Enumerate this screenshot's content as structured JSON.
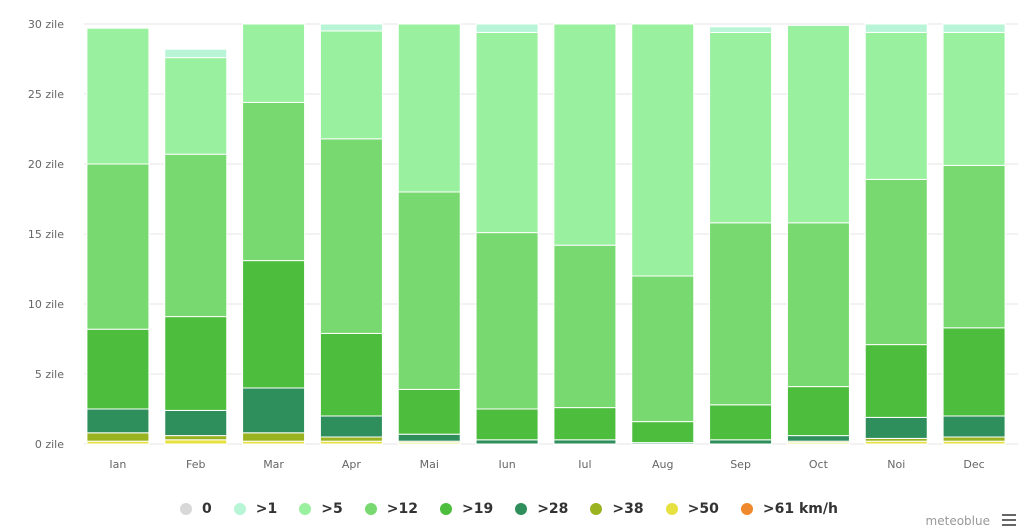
{
  "chart_data": {
    "type": "bar",
    "stacked": true,
    "categories": [
      "Ian",
      "Feb",
      "Mar",
      "Apr",
      "Mai",
      "Iun",
      "Iul",
      "Aug",
      "Sep",
      "Oct",
      "Noi",
      "Dec"
    ],
    "y_ticks": [
      "0 zile",
      "5 zile",
      "10 zile",
      "15 zile",
      "20 zile",
      "25 zile",
      "30 zile"
    ],
    "ylim": [
      0,
      30
    ],
    "grid": true,
    "legend_position": "bottom",
    "series": [
      {
        "name": "0",
        "color": "#d8d8d8",
        "values": [
          0,
          0,
          0,
          0,
          0,
          0,
          0,
          0,
          0,
          0,
          0,
          0
        ]
      },
      {
        "name": ">1",
        "color": "#b7f5d6",
        "values": [
          0,
          0.6,
          0,
          0.5,
          0,
          0.6,
          0,
          0,
          0.4,
          0,
          0.6,
          0.6
        ]
      },
      {
        "name": ">5",
        "color": "#99f09e",
        "values": [
          9.7,
          6.9,
          5.6,
          7.7,
          12.0,
          14.3,
          15.8,
          18.0,
          13.6,
          14.1,
          10.5,
          9.5
        ]
      },
      {
        "name": ">12",
        "color": "#77d96f",
        "values": [
          11.8,
          11.6,
          11.3,
          13.9,
          14.1,
          12.6,
          11.6,
          10.4,
          13.0,
          11.7,
          11.8,
          11.6
        ]
      },
      {
        "name": ">19",
        "color": "#4cbd3c",
        "values": [
          5.7,
          6.7,
          9.1,
          5.9,
          3.2,
          2.2,
          2.3,
          1.5,
          2.5,
          3.5,
          5.2,
          6.3
        ]
      },
      {
        "name": ">28",
        "color": "#2f8f5c",
        "values": [
          1.7,
          1.8,
          3.2,
          1.5,
          0.5,
          0.3,
          0.3,
          0.1,
          0.3,
          0.4,
          1.5,
          1.5
        ]
      },
      {
        "name": ">38",
        "color": "#9ab321",
        "values": [
          0.6,
          0.3,
          0.6,
          0.3,
          0.1,
          0,
          0,
          0,
          0,
          0.1,
          0.2,
          0.3
        ]
      },
      {
        "name": ">50",
        "color": "#e6e040",
        "values": [
          0.2,
          0.3,
          0.2,
          0.2,
          0.1,
          0,
          0,
          0,
          0,
          0.1,
          0.2,
          0.2
        ]
      },
      {
        "name": ">61 km/h",
        "color": "#f0892e",
        "values": [
          0,
          0,
          0,
          0,
          0,
          0,
          0,
          0,
          0,
          0,
          0,
          0
        ]
      }
    ]
  },
  "credit": "meteoblue",
  "menu_icon": "hamburger-menu-icon"
}
